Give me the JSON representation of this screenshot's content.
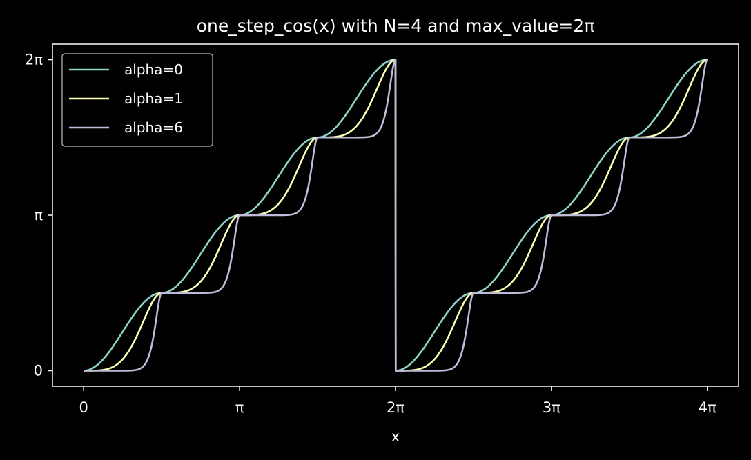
{
  "chart_data": {
    "type": "line",
    "title": "one_step_cos(x) with N=4 and max_value=2π",
    "xlabel": "x",
    "ylabel": "",
    "xlim": [
      -0.628,
      13.195
    ],
    "ylim": [
      -0.314,
      6.597
    ],
    "x_ticks": [
      {
        "value": 0,
        "label": "0"
      },
      {
        "value": 3.14159,
        "label": "π"
      },
      {
        "value": 6.28319,
        "label": "2π"
      },
      {
        "value": 9.42478,
        "label": "3π"
      },
      {
        "value": 12.56637,
        "label": "4π"
      }
    ],
    "y_ticks": [
      {
        "value": 0,
        "label": "0"
      },
      {
        "value": 3.14159,
        "label": "π"
      },
      {
        "value": 6.28319,
        "label": "2π"
      }
    ],
    "function": {
      "name": "one_step_cos",
      "N": 4,
      "max_value": 6.28319,
      "x_range": [
        0,
        12.56637
      ]
    },
    "series": [
      {
        "name": "alpha=0",
        "alpha": 0,
        "color": "#8dd3c7"
      },
      {
        "name": "alpha=1",
        "alpha": 1,
        "color": "#feffb3"
      },
      {
        "name": "alpha=6",
        "alpha": 6,
        "color": "#bfbbd9"
      }
    ],
    "legend_position": "upper-left",
    "grid": false,
    "background": "#000000",
    "axes_color": "#ffffff"
  }
}
